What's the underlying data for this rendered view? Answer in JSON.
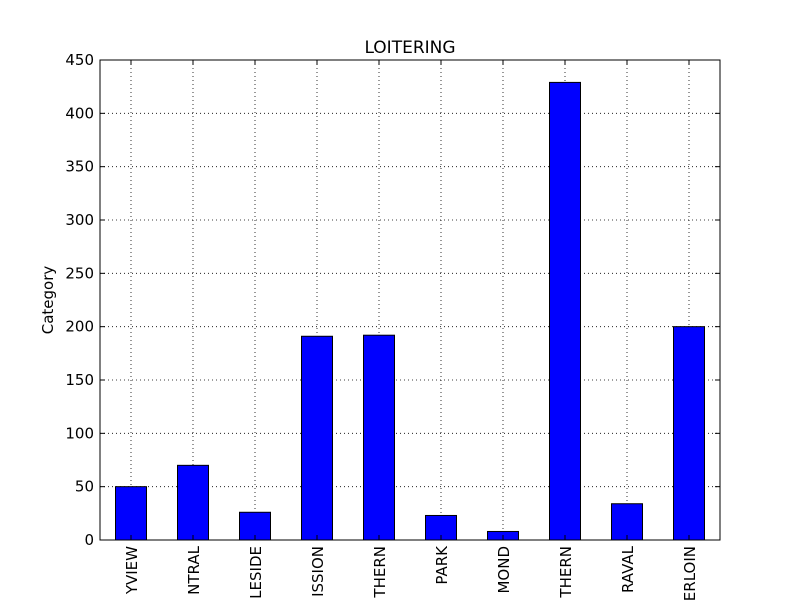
{
  "chart_data": {
    "type": "bar",
    "title": "LOITERING",
    "xlabel": "",
    "ylabel": "Category",
    "categories": [
      "BAYVIEW",
      "CENTRAL",
      "INGLESIDE",
      "MISSION",
      "NORTHERN",
      "PARK",
      "RICHMOND",
      "SOUTHERN",
      "TARAVAL",
      "TENDERLOIN"
    ],
    "category_labels_visible": [
      "YVIEW",
      "NTRAL",
      "LESIDE",
      "ISSION",
      "THERN",
      "PARK",
      "MOND",
      "THERN",
      "RAVAL",
      "ERLOIN"
    ],
    "values": [
      50,
      70,
      26,
      191,
      192,
      23,
      8,
      429,
      34,
      200
    ],
    "ylim": [
      0,
      450
    ],
    "yticks": [
      0,
      50,
      100,
      150,
      200,
      250,
      300,
      350,
      400,
      450
    ],
    "grid": true,
    "bar_color": "#0000ff",
    "edge_color": "#000000"
  }
}
